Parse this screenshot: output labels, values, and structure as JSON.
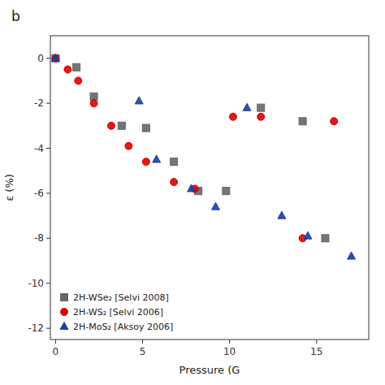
{
  "chart_data": {
    "type": "scatter",
    "title": "b",
    "x_label": "Pressure (G",
    "y_label": "ε (%)",
    "xlim": [
      -0.3,
      18
    ],
    "ylim": [
      -12.5,
      1
    ],
    "xticks": [
      0,
      5,
      10,
      15
    ],
    "yticks": [
      0,
      -2,
      -4,
      -6,
      -8,
      -10,
      -12
    ],
    "grid": false,
    "legend": "lower left",
    "series": [
      {
        "name": "2H-WSe₂ [Selvi 2008]",
        "color": "#666666",
        "marker": "square",
        "x": [
          0.0,
          1.2,
          2.2,
          3.8,
          5.2,
          6.8,
          8.2,
          9.8,
          11.8,
          14.2,
          15.5
        ],
        "values": [
          0.0,
          -0.4,
          -1.7,
          -3.0,
          -3.1,
          -4.6,
          -5.9,
          -5.9,
          -2.2,
          -2.8,
          -8.0
        ]
      },
      {
        "name": "2H-WS₂ [Selvi 2006]",
        "color": "#dd0000",
        "marker": "circle",
        "x": [
          0.0,
          0.7,
          1.3,
          2.2,
          3.2,
          4.2,
          5.2,
          6.8,
          8.0,
          10.2,
          11.8,
          14.2,
          16.0
        ],
        "values": [
          0.0,
          -0.5,
          -1.0,
          -2.0,
          -3.0,
          -3.9,
          -4.6,
          -5.5,
          -5.8,
          -2.6,
          -2.6,
          -8.0,
          -2.8
        ]
      },
      {
        "name": "2H-MoS₂ [Aksoy 2006]",
        "color": "#1a3fa0",
        "marker": "triangle",
        "x": [
          0.0,
          4.8,
          5.8,
          7.8,
          9.2,
          11.0,
          13.0,
          14.5,
          17.0
        ],
        "values": [
          0.0,
          -1.9,
          -4.5,
          -5.8,
          -6.6,
          -2.2,
          -7.0,
          -7.9,
          -8.8
        ]
      }
    ]
  }
}
